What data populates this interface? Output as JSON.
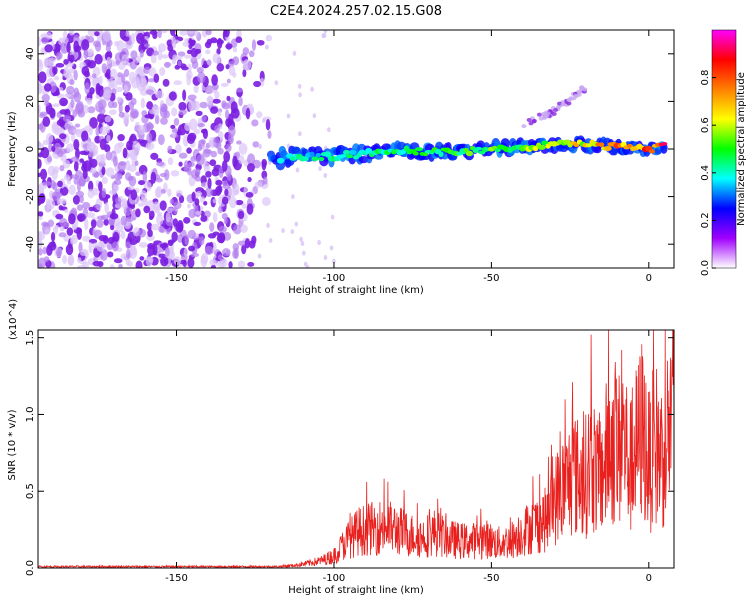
{
  "title": "C2E4.2024.257.02.15.G08",
  "chart_data": [
    {
      "type": "heatmap",
      "xlabel": "Height of straight line (km)",
      "ylabel": "Frequency (Hz)",
      "xlim": [
        -194,
        8
      ],
      "ylim": [
        -50,
        50
      ],
      "xticks": [
        -150,
        -100,
        -50,
        0
      ],
      "yticks": [
        -40,
        -20,
        0,
        20,
        40
      ],
      "xtick_labels": [
        "-150",
        "-100",
        "-50",
        "0"
      ],
      "ytick_labels": [
        "-40",
        "-20",
        "0",
        "20",
        "40"
      ],
      "colorbar": {
        "label": "Normalized spectral amplitude",
        "range": [
          0.0,
          1.0
        ],
        "ticks": [
          0.0,
          0.2,
          0.4,
          0.6,
          0.8
        ],
        "tick_labels": [
          "0.0",
          "0.2",
          "0.4",
          "0.6",
          "0.8"
        ],
        "colormap": [
          "#ffffff",
          "#a000ff",
          "#0000ff",
          "#00ffff",
          "#00ff00",
          "#ffff00",
          "#ff8000",
          "#ff0000",
          "#ff00ff"
        ]
      },
      "noise_region": {
        "x": [
          -194,
          -118
        ],
        "y": [
          -50,
          50
        ],
        "amplitude": 0.15
      },
      "ridge": [
        {
          "x": -120,
          "y": -4,
          "amp": 0.4
        },
        {
          "x": -110,
          "y": -3,
          "amp": 0.45
        },
        {
          "x": -100,
          "y": -3,
          "amp": 0.48
        },
        {
          "x": -90,
          "y": -2,
          "amp": 0.5
        },
        {
          "x": -80,
          "y": -1,
          "amp": 0.52
        },
        {
          "x": -70,
          "y": -1,
          "amp": 0.54
        },
        {
          "x": -60,
          "y": -1,
          "amp": 0.56
        },
        {
          "x": -50,
          "y": 0,
          "amp": 0.6
        },
        {
          "x": -40,
          "y": 1,
          "amp": 0.62
        },
        {
          "x": -30,
          "y": 2,
          "amp": 0.65
        },
        {
          "x": -20,
          "y": 2,
          "amp": 0.75
        },
        {
          "x": -10,
          "y": 1,
          "amp": 0.85
        },
        {
          "x": 0,
          "y": 0,
          "amp": 0.92
        },
        {
          "x": 5,
          "y": 1,
          "amp": 0.95
        }
      ],
      "faint_branch": [
        {
          "x": -40,
          "y": 10
        },
        {
          "x": -30,
          "y": 16
        },
        {
          "x": -20,
          "y": 26
        }
      ]
    },
    {
      "type": "line",
      "xlabel": "Height of straight line (km)",
      "ylabel": "SNR (10 * v/v)",
      "y_multiplier_label": "(x10^4)",
      "xlim": [
        -194,
        8
      ],
      "ylim": [
        0.0,
        1.55
      ],
      "xticks": [
        -150,
        -100,
        -50,
        0
      ],
      "yticks": [
        0.0,
        0.5,
        1.0,
        1.5
      ],
      "xtick_labels": [
        "-150",
        "-100",
        "-50",
        "0"
      ],
      "ytick_labels": [
        "0.0",
        "0.5",
        "1.0",
        "1.5"
      ],
      "color": "#e8201e",
      "series": [
        {
          "x": [
            -194,
            -185,
            -175,
            -165,
            -155,
            -145,
            -135,
            -125,
            -118,
            -112,
            -108,
            -104,
            -100,
            -96,
            -92,
            -88,
            -84,
            -80,
            -76,
            -72,
            -68,
            -64,
            -60,
            -56,
            -52,
            -48,
            -44,
            -40,
            -36,
            -32,
            -30,
            -28,
            -26,
            -24,
            -22,
            -20,
            -18,
            -16,
            -14,
            -12,
            -10,
            -8,
            -6,
            -4,
            -2,
            0,
            2,
            4,
            6,
            8
          ],
          "y": [
            0.01,
            0.01,
            0.01,
            0.01,
            0.01,
            0.01,
            0.01,
            0.01,
            0.01,
            0.02,
            0.04,
            0.06,
            0.1,
            0.22,
            0.3,
            0.32,
            0.34,
            0.31,
            0.27,
            0.25,
            0.29,
            0.24,
            0.22,
            0.22,
            0.24,
            0.2,
            0.22,
            0.3,
            0.35,
            0.4,
            0.55,
            0.62,
            0.68,
            0.78,
            0.72,
            0.75,
            0.9,
            0.7,
            0.86,
            1.05,
            0.92,
            1.08,
            0.8,
            0.98,
            1.15,
            0.85,
            1.02,
            0.92,
            1.1,
            1.3
          ]
        }
      ]
    }
  ]
}
